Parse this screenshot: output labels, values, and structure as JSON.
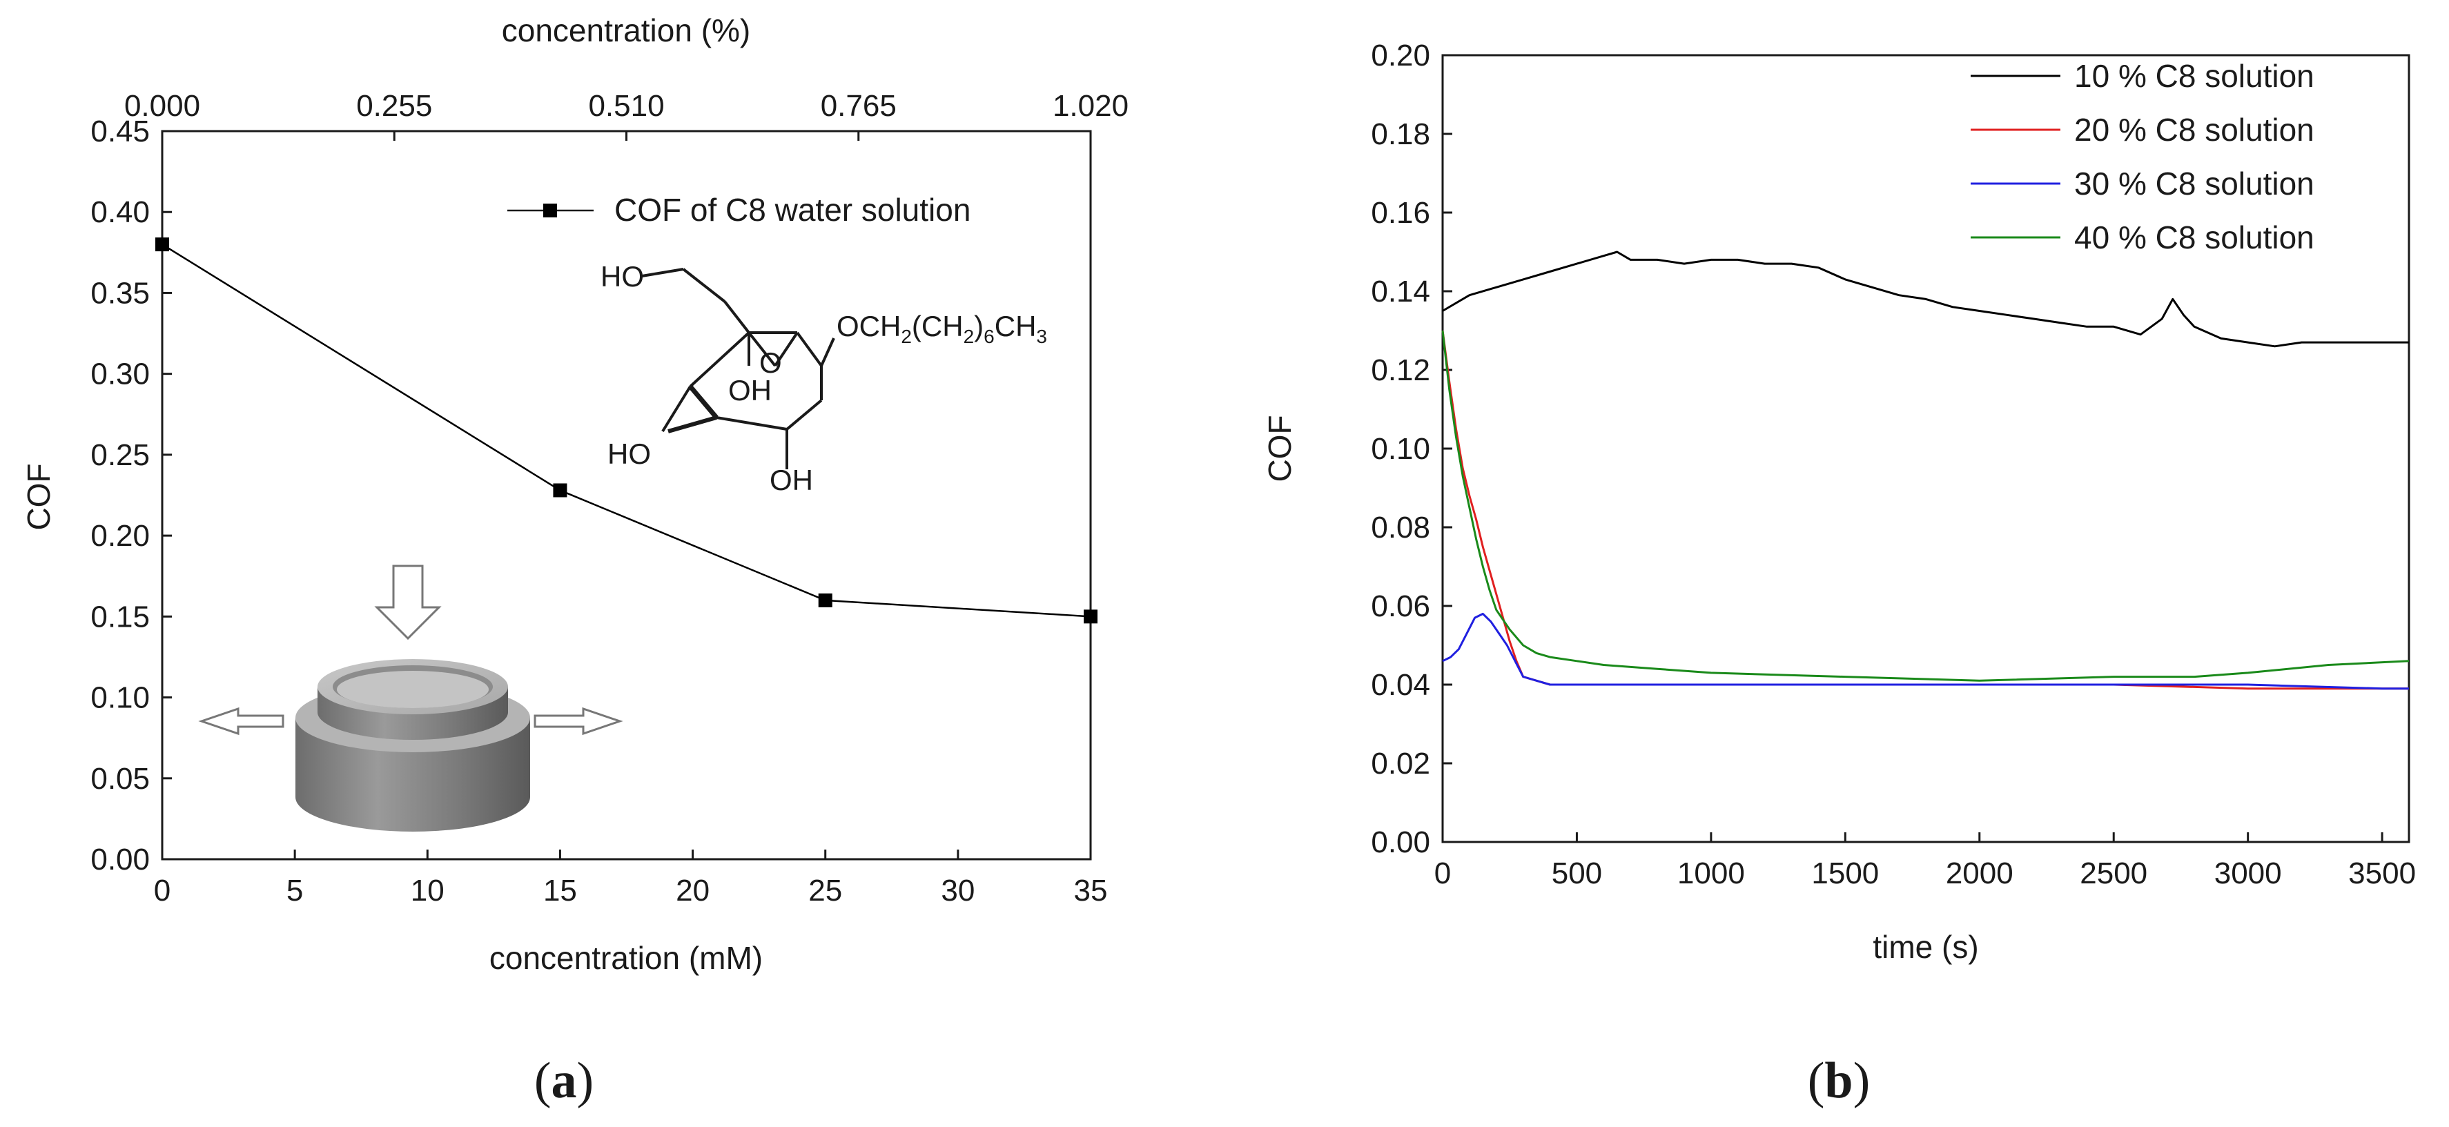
{
  "panels": {
    "a": {
      "label_open": "(",
      "label_letter": "a",
      "label_close": ")"
    },
    "b": {
      "label_open": "(",
      "label_letter": "b",
      "label_close": ")"
    }
  },
  "chart_data": [
    {
      "id": "a",
      "type": "line",
      "xlabel": "concentration (mM)",
      "x2label": "concentration (%)",
      "ylabel": "COF",
      "xlim": [
        0,
        35
      ],
      "ylim": [
        0,
        0.45
      ],
      "x_ticks": [
        0,
        5,
        10,
        15,
        20,
        25,
        30,
        35
      ],
      "x_tick_labels": [
        "0",
        "5",
        "10",
        "15",
        "20",
        "25",
        "30",
        "35"
      ],
      "x2_ticks": [
        0,
        8.75,
        17.5,
        26.25,
        35
      ],
      "x2_tick_labels": [
        "0.000",
        "0.255",
        "0.510",
        "0.765",
        "1.020"
      ],
      "y_ticks": [
        0,
        0.05,
        0.1,
        0.15,
        0.2,
        0.25,
        0.3,
        0.35,
        0.4,
        0.45
      ],
      "y_tick_labels": [
        "0.00",
        "0.05",
        "0.10",
        "0.15",
        "0.20",
        "0.25",
        "0.30",
        "0.35",
        "0.40",
        "0.45"
      ],
      "series": [
        {
          "name": "COF of C8 water solution",
          "color": "#000000",
          "marker": "square",
          "x": [
            0,
            15,
            25,
            35
          ],
          "y": [
            0.38,
            0.228,
            0.16,
            0.15
          ]
        }
      ],
      "grid": false,
      "legend_position": "top-right",
      "annotations": {
        "formula_ho": "HO",
        "formula_tail_prefix": "OCH",
        "formula_sub1": "2",
        "formula_paren_open": "(CH",
        "formula_sub2": "2",
        "formula_paren_close": ")",
        "formula_sub3": "6",
        "formula_ch": "CH",
        "formula_sub4": "3",
        "formula_oh1": "OH",
        "formula_ho2": "HO",
        "formula_oh2": "OH",
        "ring_o": "O"
      }
    },
    {
      "id": "b",
      "type": "line",
      "xlabel": "time (s)",
      "ylabel": "COF",
      "xlim": [
        0,
        3600
      ],
      "ylim": [
        0,
        0.2
      ],
      "x_ticks": [
        0,
        500,
        1000,
        1500,
        2000,
        2500,
        3000,
        3500
      ],
      "x_tick_labels": [
        "0",
        "500",
        "1000",
        "1500",
        "2000",
        "2500",
        "3000",
        "3500"
      ],
      "y_ticks": [
        0,
        0.02,
        0.04,
        0.06,
        0.08,
        0.1,
        0.12,
        0.14,
        0.16,
        0.18,
        0.2
      ],
      "y_tick_labels": [
        "0.00",
        "0.02",
        "0.04",
        "0.06",
        "0.08",
        "0.10",
        "0.12",
        "0.14",
        "0.16",
        "0.18",
        "0.20"
      ],
      "grid": false,
      "legend_position": "top-right",
      "series": [
        {
          "name": "10 % C8 solution",
          "color": "#000000",
          "x": [
            0,
            100,
            200,
            300,
            400,
            500,
            600,
            650,
            700,
            800,
            900,
            1000,
            1100,
            1200,
            1300,
            1400,
            1500,
            1600,
            1700,
            1800,
            1900,
            2000,
            2100,
            2200,
            2300,
            2400,
            2500,
            2600,
            2680,
            2720,
            2760,
            2800,
            2900,
            3000,
            3100,
            3200,
            3300,
            3400,
            3500,
            3600
          ],
          "y": [
            0.135,
            0.139,
            0.141,
            0.143,
            0.145,
            0.147,
            0.149,
            0.15,
            0.148,
            0.148,
            0.147,
            0.148,
            0.148,
            0.147,
            0.147,
            0.146,
            0.143,
            0.141,
            0.139,
            0.138,
            0.136,
            0.135,
            0.134,
            0.133,
            0.132,
            0.131,
            0.131,
            0.129,
            0.133,
            0.138,
            0.134,
            0.131,
            0.128,
            0.127,
            0.126,
            0.127,
            0.127,
            0.127,
            0.127,
            0.127
          ]
        },
        {
          "name": "20 % C8 solution",
          "color": "#e02020",
          "x": [
            0,
            25,
            50,
            75,
            100,
            125,
            150,
            175,
            200,
            225,
            250,
            275,
            300,
            350,
            400,
            500,
            700,
            1000,
            1500,
            2000,
            2500,
            3000,
            3500,
            3600
          ],
          "y": [
            0.13,
            0.117,
            0.105,
            0.095,
            0.088,
            0.082,
            0.075,
            0.069,
            0.063,
            0.057,
            0.051,
            0.046,
            0.042,
            0.041,
            0.04,
            0.04,
            0.04,
            0.04,
            0.04,
            0.04,
            0.04,
            0.039,
            0.039,
            0.039
          ]
        },
        {
          "name": "30 % C8 solution",
          "color": "#2020e0",
          "x": [
            0,
            30,
            60,
            90,
            120,
            150,
            180,
            210,
            240,
            270,
            300,
            350,
            400,
            500,
            600,
            800,
            1000,
            1500,
            2000,
            2500,
            3000,
            3500,
            3600
          ],
          "y": [
            0.046,
            0.047,
            0.049,
            0.053,
            0.057,
            0.058,
            0.056,
            0.053,
            0.05,
            0.046,
            0.042,
            0.041,
            0.04,
            0.04,
            0.04,
            0.04,
            0.04,
            0.04,
            0.04,
            0.04,
            0.04,
            0.039,
            0.039
          ]
        },
        {
          "name": "40 % C8 solution",
          "color": "#1a8a1a",
          "x": [
            0,
            25,
            50,
            75,
            100,
            125,
            150,
            175,
            200,
            250,
            300,
            350,
            400,
            500,
            600,
            800,
            1000,
            1500,
            2000,
            2500,
            2800,
            3000,
            3300,
            3600
          ],
          "y": [
            0.13,
            0.115,
            0.103,
            0.093,
            0.085,
            0.077,
            0.07,
            0.064,
            0.059,
            0.054,
            0.05,
            0.048,
            0.047,
            0.046,
            0.045,
            0.044,
            0.043,
            0.042,
            0.041,
            0.042,
            0.042,
            0.043,
            0.045,
            0.046
          ]
        }
      ]
    }
  ]
}
